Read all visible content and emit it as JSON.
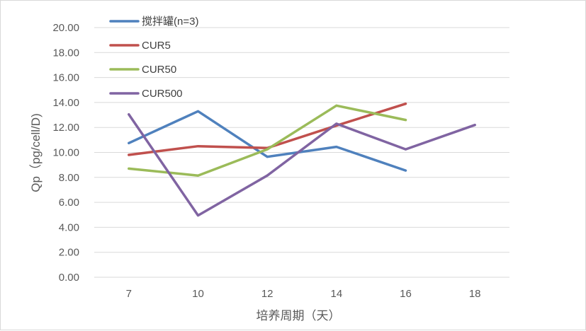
{
  "chart_data": {
    "type": "line",
    "title": "",
    "xlabel": "培养周期（天）",
    "ylabel": "Qp（pg/cell/D)",
    "categories": [
      "7",
      "10",
      "12",
      "14",
      "16",
      "18"
    ],
    "ylim": [
      0,
      20
    ],
    "ytick_labels": [
      "0.00",
      "2.00",
      "4.00",
      "6.00",
      "8.00",
      "10.00",
      "12.00",
      "14.00",
      "16.00",
      "18.00",
      "20.00"
    ],
    "grid": "horizontal",
    "legend_position": "top-left",
    "series": [
      {
        "name": "搅拌罐(n=3)",
        "color": "#4f81bd",
        "values": [
          10.75,
          13.3,
          9.65,
          10.45,
          8.55,
          null
        ]
      },
      {
        "name": "CUR5",
        "color": "#c0504d",
        "values": [
          9.8,
          10.5,
          10.35,
          12.15,
          13.9,
          null
        ]
      },
      {
        "name": "CUR50",
        "color": "#9bbb59",
        "values": [
          8.7,
          8.15,
          10.25,
          13.75,
          12.6,
          null
        ]
      },
      {
        "name": "CUR500",
        "color": "#8064a2",
        "values": [
          13.05,
          4.95,
          8.15,
          12.3,
          10.25,
          12.2
        ]
      }
    ]
  }
}
